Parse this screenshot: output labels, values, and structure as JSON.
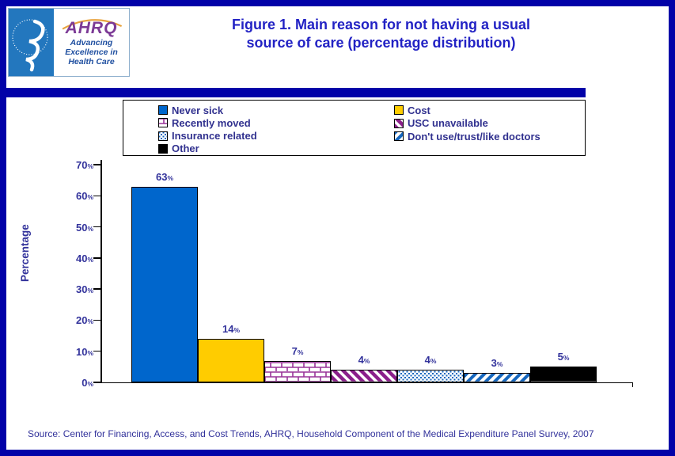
{
  "header": {
    "logo": {
      "org_acronym": "AHRQ",
      "tagline": [
        "Advancing",
        "Excellence in",
        "Health Care"
      ]
    },
    "title_lines": [
      "Figure 1. Main reason for not having a usual",
      "source of care (percentage distribution)"
    ]
  },
  "legend": {
    "left_column": [
      {
        "label": "Never sick",
        "pattern": "solid",
        "color": "#0066CC"
      },
      {
        "label": "Recently moved",
        "pattern": "brick",
        "color": "#993399"
      },
      {
        "label": "Insurance related",
        "pattern": "dots",
        "color": "#1566BE"
      },
      {
        "label": "Other",
        "pattern": "solid",
        "color": "#000000"
      }
    ],
    "right_column": [
      {
        "label": "Cost",
        "pattern": "solid",
        "color": "#FFCC00"
      },
      {
        "label": "USC unavailable",
        "pattern": "diag-back",
        "color": "#8A1F8A"
      },
      {
        "label": "Don't use/trust/like doctors",
        "pattern": "diag-fwd",
        "color": "#1566BE"
      }
    ]
  },
  "chart_data": {
    "type": "bar",
    "title": "Figure 1. Main reason for not having a usual source of care (percentage distribution)",
    "xlabel": "",
    "ylabel": "Percentage",
    "ylim": [
      0,
      70
    ],
    "ytick_step": 10,
    "ytick_suffix": "%",
    "grid": false,
    "legend_position": "top",
    "categories": [
      "Never sick",
      "Cost",
      "Recently moved",
      "USC unavailable",
      "Insurance related",
      "Don't use/trust/like doctors",
      "Other"
    ],
    "values": [
      63,
      14,
      7,
      4,
      4,
      3,
      5
    ],
    "value_labels": [
      "63%",
      "14%",
      "7%",
      "4%",
      "4%",
      "3%",
      "5%"
    ],
    "bar_styles": [
      {
        "pattern": "solid",
        "color": "#0066CC"
      },
      {
        "pattern": "solid",
        "color": "#FFCC00"
      },
      {
        "pattern": "brick",
        "color": "#993399"
      },
      {
        "pattern": "diag-back",
        "color": "#8A1F8A"
      },
      {
        "pattern": "dots",
        "color": "#1566BE"
      },
      {
        "pattern": "diag-fwd",
        "color": "#1566BE"
      },
      {
        "pattern": "solid",
        "color": "#000000"
      }
    ]
  },
  "footer": {
    "source": "Source: Center for Financing, Access, and Cost Trends, AHRQ, Household Component of the Medical Expenditure Panel Survey, 2007"
  },
  "colors": {
    "accent_border": "#0202A8",
    "title_text": "#2222C4",
    "chart_text": "#32329B",
    "legend_text": "#31318F",
    "ahrq_purple": "#7C3A96",
    "tagline_blue": "#1F4FA0",
    "hhs_panel_blue": "#2377BE",
    "logo_arc_orange": "#E8A33D"
  }
}
